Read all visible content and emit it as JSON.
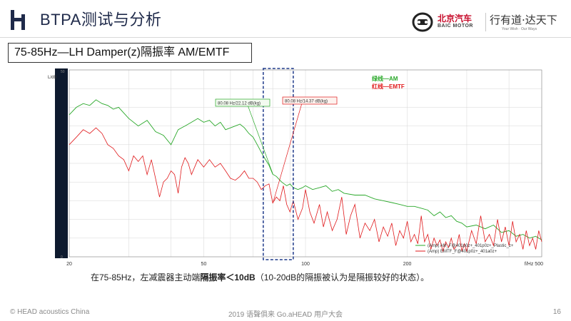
{
  "header": {
    "title": "BTPA测试与分析",
    "brand_name": "北京汽车",
    "brand_sub": "BAIC MOTOR",
    "brand_slogan": "行有道·达天下",
    "brand_tagline": "Your Wish · Our Ways"
  },
  "subtitle": "75-85Hz—LH Damper(z)隔振率 AM/EMTF",
  "caption": {
    "prefix": "在75-85Hz，左减震器主动端",
    "bold": "隔振率＜10dB",
    "suffix": "（10-20dB的隔振被认为是隔振较好的状态）。"
  },
  "footer": {
    "left": "© HEAD acoustics China",
    "center": "2019 语聲俱来 Go.aHEAD 用户大会",
    "page": "16"
  },
  "colors": {
    "am": "#29a829",
    "emtf": "#e0191b",
    "highlight": "#1f3a8a",
    "axis_bar": "#0e1a2e"
  },
  "chart_data": {
    "type": "line",
    "xscale": "log",
    "xlim": [
      20,
      500
    ],
    "ylim": [
      0,
      50
    ],
    "ylabel": "L/dB",
    "xlabel": "f/Hz",
    "x_ticks": [
      20,
      50,
      100,
      200,
      500
    ],
    "x_tick_labels": [
      "20",
      "50",
      "100",
      "200",
      "f/Hz  500"
    ],
    "y_tick_labels": [
      "50",
      "0"
    ],
    "grid": true,
    "legend_placement": "bottom-right",
    "highlight_range": [
      75,
      92
    ],
    "notes": [
      "绿线—AM",
      "红线—EMTF"
    ],
    "series": [
      {
        "name": "(Amp) AM_F@401p0z+_401p0z+_Plastic_z+",
        "x": [
          20,
          21,
          22,
          23,
          24,
          25,
          26,
          27,
          28,
          30,
          32,
          34,
          36,
          38,
          40,
          42,
          44,
          46,
          48,
          50,
          52,
          54,
          56,
          58,
          60,
          62,
          64,
          66,
          68,
          70,
          72,
          75,
          78,
          80,
          82,
          85,
          88,
          90,
          92,
          95,
          98,
          100,
          105,
          110,
          115,
          120,
          125,
          130,
          140,
          150,
          160,
          170,
          180,
          190,
          200,
          210,
          220,
          230,
          240,
          250,
          260,
          270,
          280,
          290,
          300,
          320,
          340,
          360,
          380,
          400,
          420,
          440,
          460,
          480,
          500
        ],
        "y": [
          38,
          40,
          41,
          40.5,
          42,
          41,
          40.5,
          39.5,
          40,
          37,
          35,
          36.5,
          33.5,
          32.5,
          30,
          34,
          35,
          36,
          37,
          36,
          36.5,
          35,
          36,
          34,
          34.5,
          35,
          35.5,
          34.5,
          33,
          32,
          30,
          27,
          24.5,
          22.1,
          21.5,
          20,
          19,
          19.5,
          18.5,
          18,
          18.5,
          19,
          18,
          18.5,
          19,
          17.5,
          18,
          17,
          16.5,
          16.5,
          15.5,
          15,
          14.5,
          14,
          13.5,
          13.5,
          13,
          12.5,
          11,
          12,
          10.5,
          11,
          9.5,
          9,
          8,
          8.5,
          7.5,
          8.5,
          6.5,
          7,
          5.5,
          6,
          5,
          5.5,
          4.5
        ]
      },
      {
        "name": "(Amp) EMTF_F@401p0z+_401a0z+",
        "x": [
          20,
          21,
          22,
          23,
          24,
          25,
          26,
          27,
          28,
          29,
          30,
          31,
          32,
          33,
          34,
          35,
          36,
          37,
          38,
          39,
          40,
          41,
          42,
          43,
          44,
          45,
          46,
          48,
          50,
          52,
          54,
          56,
          58,
          60,
          62,
          64,
          66,
          68,
          70,
          72,
          74,
          76,
          78,
          80,
          82,
          84,
          86,
          88,
          90,
          92,
          95,
          98,
          100,
          103,
          106,
          110,
          113,
          116,
          120,
          124,
          128,
          132,
          136,
          140,
          145,
          150,
          155,
          160,
          165,
          170,
          175,
          180,
          185,
          190,
          195,
          200,
          205,
          210,
          215,
          220,
          225,
          230,
          235,
          240,
          245,
          250,
          255,
          260,
          265,
          270,
          275,
          280,
          285,
          290,
          295,
          300,
          310,
          320,
          330,
          340,
          350,
          360,
          370,
          380,
          390,
          400,
          410,
          420,
          430,
          440,
          450,
          460,
          470,
          480,
          490,
          500
        ],
        "y": [
          30,
          32,
          34,
          33,
          34.5,
          33,
          30,
          29,
          27,
          26,
          23,
          27,
          25.5,
          27,
          22,
          26,
          21,
          16,
          20,
          21,
          23,
          22,
          17,
          24,
          26.5,
          25,
          22,
          26,
          24,
          26,
          24,
          25,
          23,
          21,
          20.5,
          21.5,
          23,
          21,
          21,
          20,
          18,
          19,
          19.5,
          14.4,
          16,
          15,
          19,
          14,
          12,
          15,
          10,
          13,
          18,
          12,
          9,
          14,
          8,
          12,
          7,
          10,
          16,
          6,
          11,
          14,
          5,
          9,
          7,
          10,
          4,
          8,
          5.5,
          9,
          3,
          7,
          5,
          9.5,
          4,
          6,
          3.5,
          11,
          4,
          6,
          2,
          5,
          3,
          4.5,
          1.5,
          4,
          2.5,
          5,
          2,
          3,
          6,
          1.5,
          3.5,
          1.5,
          7,
          3.5,
          11,
          4,
          6,
          3,
          10,
          4,
          8,
          3,
          9.5,
          4,
          6,
          2,
          7,
          3,
          5,
          2,
          7,
          4
        ]
      }
    ],
    "annotations": [
      {
        "text": "80.08 Hz/22.12 dB(kg)",
        "x": 80.08,
        "y": 22.12,
        "series": 0
      },
      {
        "text": "80.08 Hz/14.37 dB(kg)",
        "x": 80.08,
        "y": 14.37,
        "series": 1
      }
    ]
  }
}
